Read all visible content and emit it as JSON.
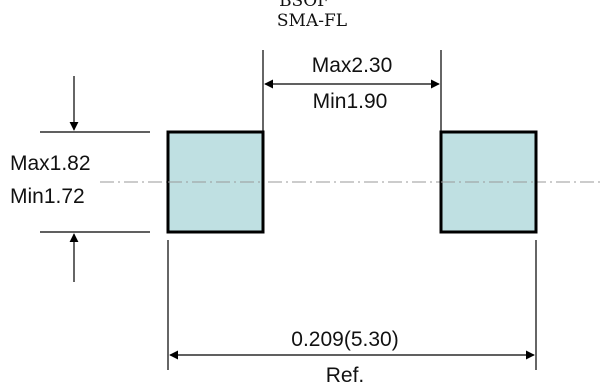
{
  "diagram": {
    "title": "SMA-FL",
    "title_cut_off_above": "BSOF",
    "pad_fill_color": "#bfe0e2",
    "pad_stroke_color": "#000000",
    "centerline_color": "#9a9a9a",
    "dimensions": {
      "pad_gap": {
        "max": "Max2.30",
        "min": "Min1.90"
      },
      "pad_height": {
        "max": "Max1.82",
        "min": "Min1.72"
      },
      "overall_span": {
        "value": "0.209(5.30)",
        "note": "Ref."
      }
    }
  }
}
